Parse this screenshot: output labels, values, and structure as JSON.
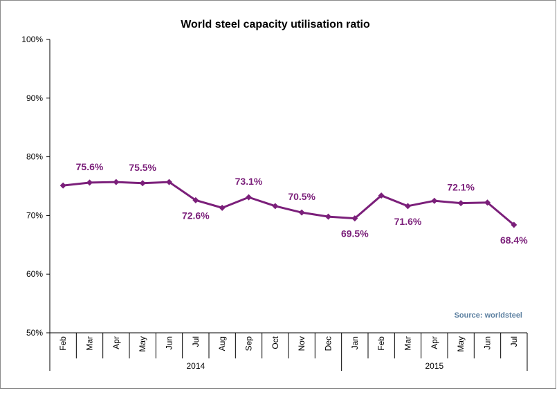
{
  "chart_data": {
    "type": "line",
    "title": "World steel capacity utilisation ratio",
    "xlabel": "",
    "ylabel": "",
    "ylim": [
      50,
      100
    ],
    "y_ticks": [
      "100%",
      "90%",
      "80%",
      "70%",
      "60%",
      "50%"
    ],
    "y_tick_values": [
      100,
      90,
      80,
      70,
      60,
      50
    ],
    "categories": [
      "Feb",
      "Mar",
      "Apr",
      "May",
      "Jun",
      "Jul",
      "Aug",
      "Sep",
      "Oct",
      "Nov",
      "Dec",
      "Jan",
      "Feb",
      "Mar",
      "Apr",
      "May",
      "Jun",
      "Jul"
    ],
    "year_groups": [
      {
        "label": "2014",
        "start": 0,
        "end": 10
      },
      {
        "label": "2015",
        "start": 11,
        "end": 17
      }
    ],
    "series": [
      {
        "values": [
          75.1,
          75.6,
          75.7,
          75.5,
          75.7,
          72.6,
          71.3,
          73.1,
          71.6,
          70.5,
          69.8,
          69.5,
          73.4,
          71.6,
          72.5,
          72.1,
          72.2,
          68.4
        ],
        "color": "#7b1f7a"
      }
    ],
    "data_labels": [
      {
        "index": 1,
        "text": "75.6%",
        "pos": "above"
      },
      {
        "index": 3,
        "text": "75.5%",
        "pos": "above"
      },
      {
        "index": 5,
        "text": "72.6%",
        "pos": "below"
      },
      {
        "index": 7,
        "text": "73.1%",
        "pos": "above"
      },
      {
        "index": 9,
        "text": "70.5%",
        "pos": "above"
      },
      {
        "index": 11,
        "text": "69.5%",
        "pos": "below"
      },
      {
        "index": 13,
        "text": "71.6%",
        "pos": "below"
      },
      {
        "index": 15,
        "text": "72.1%",
        "pos": "above"
      },
      {
        "index": 17,
        "text": "68.4%",
        "pos": "below"
      }
    ],
    "source": "Source: worldsteel",
    "source_color": "#5b7fa0",
    "grid": false,
    "legend": "none"
  }
}
